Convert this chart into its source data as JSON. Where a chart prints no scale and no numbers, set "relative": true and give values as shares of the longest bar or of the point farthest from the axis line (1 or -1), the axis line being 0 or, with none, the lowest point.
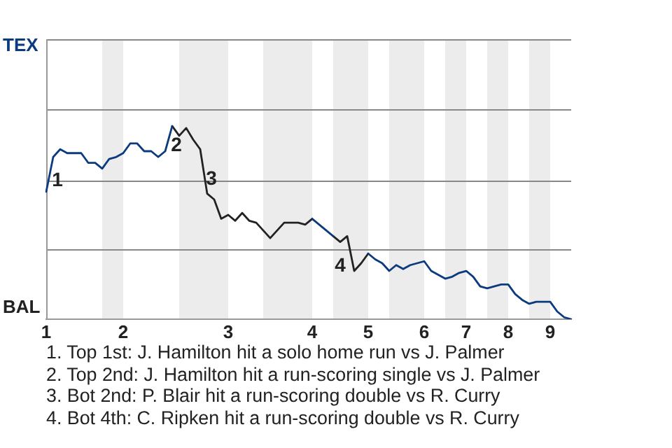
{
  "chart_data": {
    "type": "line",
    "relative": true,
    "categories": [
      "1",
      null,
      null,
      null,
      null,
      null,
      null,
      null,
      null,
      null,
      null,
      "2",
      null,
      null,
      null,
      null,
      null,
      null,
      null,
      null,
      null,
      null,
      null,
      null,
      null,
      null,
      "3",
      null,
      null,
      null,
      null,
      null,
      null,
      null,
      null,
      null,
      null,
      null,
      "4",
      null,
      null,
      null,
      null,
      null,
      null,
      null,
      "5",
      null,
      null,
      null,
      null,
      null,
      null,
      null,
      "6",
      null,
      null,
      null,
      null,
      null,
      "7",
      null,
      null,
      null,
      null,
      null,
      "8",
      null,
      null,
      null,
      null,
      null,
      "9",
      null,
      null,
      null
    ],
    "series": [
      {
        "color": "#0b3a7e",
        "values": [
          0.66,
          0.84,
          0.88,
          0.86,
          0.86,
          0.86,
          0.81,
          0.81,
          0.78,
          0.83,
          0.84,
          0.86,
          0.91,
          0.91,
          0.87,
          0.87,
          0.84,
          0.87,
          1,
          null,
          null,
          null,
          null,
          null,
          null,
          null,
          null,
          null,
          null,
          null,
          null,
          null,
          null,
          null,
          null,
          null,
          null,
          null,
          0.52,
          0.49,
          0.46,
          0.43,
          null,
          null,
          null,
          null,
          0.34,
          0.31,
          0.29,
          0.25,
          0.28,
          0.26,
          0.28,
          0.29,
          0.3,
          0.25,
          0.23,
          0.21,
          0.22,
          0.24,
          0.25,
          0.22,
          0.17,
          0.16,
          0.17,
          0.18,
          0.18,
          0.13,
          0.1,
          0.08,
          0.09,
          0.09,
          0.09,
          0.04,
          0.01,
          0
        ]
      },
      {
        "color": "#222222",
        "values": [
          null,
          null,
          null,
          null,
          null,
          null,
          null,
          null,
          null,
          null,
          null,
          null,
          null,
          null,
          null,
          null,
          null,
          null,
          1,
          0.95,
          0.99,
          0.93,
          0.88,
          0.65,
          0.62,
          0.52,
          0.54,
          0.51,
          0.55,
          0.51,
          0.5,
          0.46,
          0.42,
          0.46,
          0.5,
          0.5,
          0.5,
          0.49,
          0.52,
          null,
          null,
          0.43,
          0.4,
          0.43,
          0.25,
          0.29,
          0.34,
          null,
          null,
          null,
          null,
          null,
          null,
          null,
          null,
          null,
          null,
          null,
          null,
          null,
          null,
          null,
          null,
          null,
          null,
          null,
          null,
          null,
          null,
          null,
          null,
          null,
          null,
          null,
          null,
          null
        ]
      }
    ],
    "ref_lines": [
      {
        "axis": "y",
        "value": 0.36,
        "color": "#888888"
      },
      {
        "axis": "y",
        "value": 0.72,
        "color": "#888888"
      },
      {
        "axis": "y",
        "value": 1.09,
        "color": "#888888"
      }
    ],
    "legend": false,
    "marker": "none",
    "line_style": "solid",
    "annotations": [
      "TEX",
      "BAL",
      "1",
      "2",
      "3",
      "4",
      "1. Top 1st: J. Hamilton hit a solo home run vs J. Palmer",
      "2. Top 2nd: J. Hamilton hit a run-scoring single vs J. Palmer",
      "3. Bot 2nd: P. Blair hit a run-scoring double vs R. Curry",
      "4. Bot 4th: C. Ripken hit a run-scoring double vs R. Curry"
    ]
  }
}
